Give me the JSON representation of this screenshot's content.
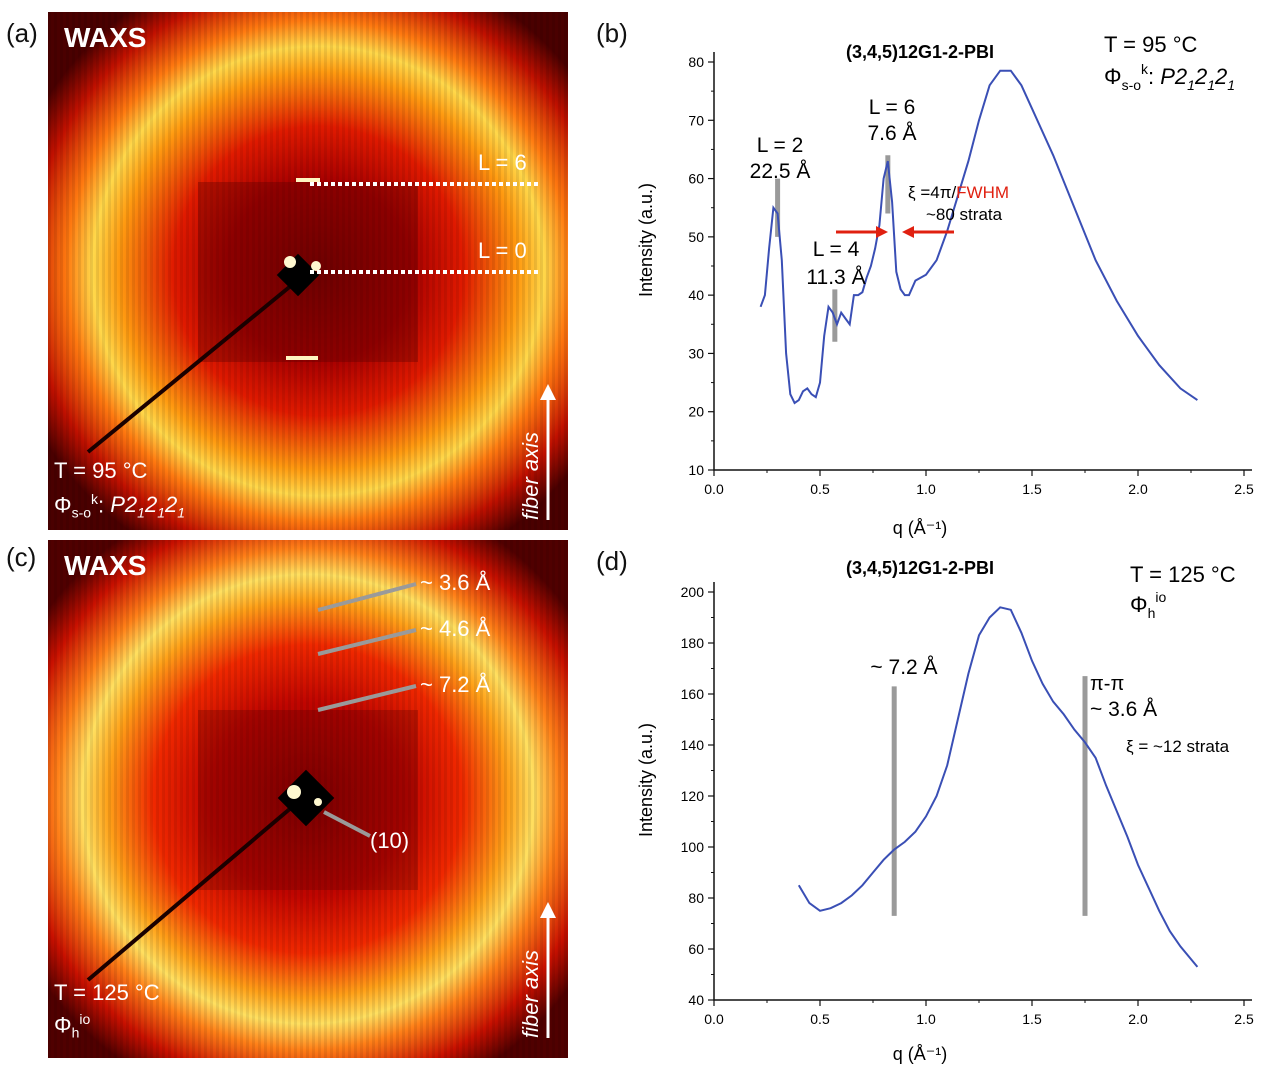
{
  "panels": {
    "a": {
      "letter": "(a)",
      "title": "WAXS",
      "temp": "T = 95 °C",
      "phase_sym": "Φ",
      "phase_sub": "s-o",
      "phase_sup": "k",
      "phase_rest_prefix": ": P2",
      "phase_group": "P212121",
      "labels": [
        "L = 6",
        "L = 0"
      ],
      "fiber_axis": "fiber axis"
    },
    "c": {
      "letter": "(c)",
      "title": "WAXS",
      "temp": "T = 125 °C",
      "phase_sym": "Φ",
      "phase_sub": "h",
      "phase_sup": "io",
      "labels": [
        "~ 3.6 Å",
        "~ 4.6 Å",
        "~ 7.2 Å",
        "(10)"
      ],
      "fiber_axis": "fiber axis"
    },
    "b": {
      "letter": "(b)"
    },
    "d": {
      "letter": "(d)"
    }
  },
  "chart_data": [
    {
      "type": "line",
      "panel": "b",
      "title": "(3,4,5)12G1-2-PBI",
      "xlabel": "q (Å⁻¹)",
      "ylabel": "Intensity (a.u.)",
      "xlim": [
        0.0,
        2.5
      ],
      "ylim": [
        10,
        80
      ],
      "xticks": [
        "0.0",
        "0.5",
        "1.0",
        "1.5",
        "2.0",
        "2.5"
      ],
      "yticks": [
        "10",
        "20",
        "30",
        "40",
        "50",
        "60",
        "70",
        "80"
      ],
      "series_color": "#3a4fb5",
      "x": [
        0.22,
        0.24,
        0.26,
        0.28,
        0.3,
        0.32,
        0.34,
        0.36,
        0.38,
        0.4,
        0.42,
        0.44,
        0.46,
        0.48,
        0.5,
        0.52,
        0.54,
        0.56,
        0.58,
        0.6,
        0.62,
        0.64,
        0.66,
        0.68,
        0.7,
        0.72,
        0.74,
        0.76,
        0.78,
        0.8,
        0.82,
        0.84,
        0.86,
        0.88,
        0.9,
        0.92,
        0.95,
        1.0,
        1.05,
        1.1,
        1.15,
        1.2,
        1.25,
        1.3,
        1.35,
        1.4,
        1.45,
        1.5,
        1.6,
        1.7,
        1.8,
        1.9,
        2.0,
        2.1,
        2.2,
        2.28
      ],
      "y": [
        38,
        40,
        48,
        55,
        54,
        46,
        30,
        23,
        21.5,
        22,
        23.5,
        24,
        23,
        22.5,
        25,
        33,
        38,
        37,
        35,
        37,
        36,
        35,
        40,
        40,
        40.5,
        43,
        45,
        48,
        52,
        60,
        63,
        56,
        44,
        41,
        40,
        40,
        42.5,
        43.5,
        46,
        51,
        57,
        63,
        70,
        76,
        78.5,
        78.5,
        76,
        72,
        64,
        55,
        46,
        39,
        33,
        28,
        24,
        22
      ],
      "annotations": {
        "temp": "T = 95 °C",
        "phase_sym": "Φ",
        "phase_sub": "s-o",
        "phase_sup": "k",
        "phase_group": "P212121",
        "L2": [
          "L = 2",
          "22.5 Å"
        ],
        "L4": [
          "L = 4",
          "11.3 Å"
        ],
        "L6": [
          "L = 6",
          "7.6 Å"
        ],
        "xi_prefix": "ξ =4π/",
        "xi_fwhm": "FWHM",
        "strata": "~80 strata"
      }
    },
    {
      "type": "line",
      "panel": "d",
      "title": "(3,4,5)12G1-2-PBI",
      "xlabel": "q (Å⁻¹)",
      "ylabel": "Intensity (a.u.)",
      "xlim": [
        0.0,
        2.5
      ],
      "ylim": [
        40,
        200
      ],
      "xticks": [
        "0.0",
        "0.5",
        "1.0",
        "1.5",
        "2.0",
        "2.5"
      ],
      "yticks": [
        "40",
        "60",
        "80",
        "100",
        "120",
        "140",
        "160",
        "180",
        "200"
      ],
      "series_color": "#3a4fb5",
      "x": [
        0.4,
        0.45,
        0.5,
        0.55,
        0.6,
        0.65,
        0.7,
        0.75,
        0.8,
        0.85,
        0.9,
        0.95,
        1.0,
        1.05,
        1.1,
        1.15,
        1.2,
        1.25,
        1.3,
        1.35,
        1.4,
        1.45,
        1.5,
        1.55,
        1.6,
        1.65,
        1.7,
        1.75,
        1.8,
        1.85,
        1.9,
        1.95,
        2.0,
        2.05,
        2.1,
        2.15,
        2.2,
        2.28
      ],
      "y": [
        85,
        78,
        75,
        76,
        78,
        81,
        85,
        90,
        95,
        99,
        102,
        106,
        112,
        120,
        132,
        150,
        168,
        183,
        190,
        194,
        193,
        184,
        173,
        164,
        157,
        152,
        146,
        141,
        135,
        124,
        114,
        104,
        93,
        84,
        75,
        67,
        61,
        53
      ],
      "annotations": {
        "temp": "T = 125 °C",
        "phase_sym": "Φ",
        "phase_sub": "h",
        "phase_sup": "io",
        "d72": "~ 7.2 Å",
        "pipi": "π-π",
        "d36": "~ 3.6 Å",
        "strata": "ξ = ~12 strata"
      }
    }
  ]
}
